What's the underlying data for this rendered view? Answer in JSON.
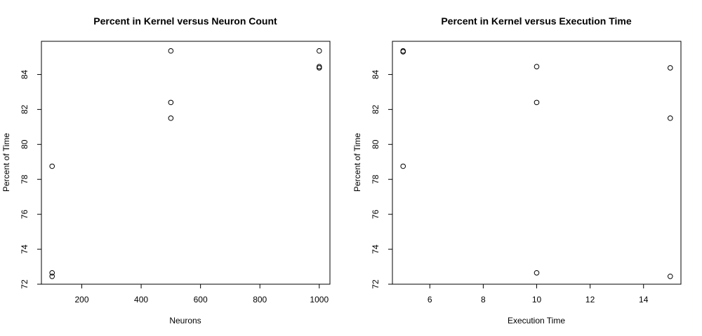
{
  "chart_data": [
    {
      "type": "scatter",
      "title": "Percent in Kernel versus Neuron Count",
      "xlabel": "Neurons",
      "ylabel": "Percent of Time",
      "xlim": [
        64,
        1036
      ],
      "ylim": [
        72.0,
        85.9
      ],
      "xticks": [
        200,
        400,
        600,
        800,
        1000
      ],
      "yticks": [
        72,
        74,
        76,
        78,
        80,
        82,
        84
      ],
      "points": [
        {
          "x": 100,
          "y": 78.75
        },
        {
          "x": 100,
          "y": 72.65
        },
        {
          "x": 100,
          "y": 72.45
        },
        {
          "x": 500,
          "y": 85.35
        },
        {
          "x": 500,
          "y": 82.4
        },
        {
          "x": 500,
          "y": 81.5
        },
        {
          "x": 1000,
          "y": 85.35
        },
        {
          "x": 1000,
          "y": 84.45
        },
        {
          "x": 1000,
          "y": 84.38
        }
      ]
    },
    {
      "type": "scatter",
      "title": "Percent in Kernel versus Execution Time",
      "xlabel": "Execution Time",
      "ylabel": "Percent of Time",
      "xlim": [
        4.6,
        15.4
      ],
      "ylim": [
        72.0,
        85.9
      ],
      "xticks": [
        6,
        8,
        10,
        12,
        14
      ],
      "yticks": [
        72,
        74,
        76,
        78,
        80,
        82,
        84
      ],
      "points": [
        {
          "x": 5,
          "y": 85.35
        },
        {
          "x": 5,
          "y": 85.3
        },
        {
          "x": 5,
          "y": 78.75
        },
        {
          "x": 10,
          "y": 84.45
        },
        {
          "x": 10,
          "y": 82.4
        },
        {
          "x": 10,
          "y": 72.65
        },
        {
          "x": 15,
          "y": 84.38
        },
        {
          "x": 15,
          "y": 81.5
        },
        {
          "x": 15,
          "y": 72.45
        }
      ]
    }
  ]
}
